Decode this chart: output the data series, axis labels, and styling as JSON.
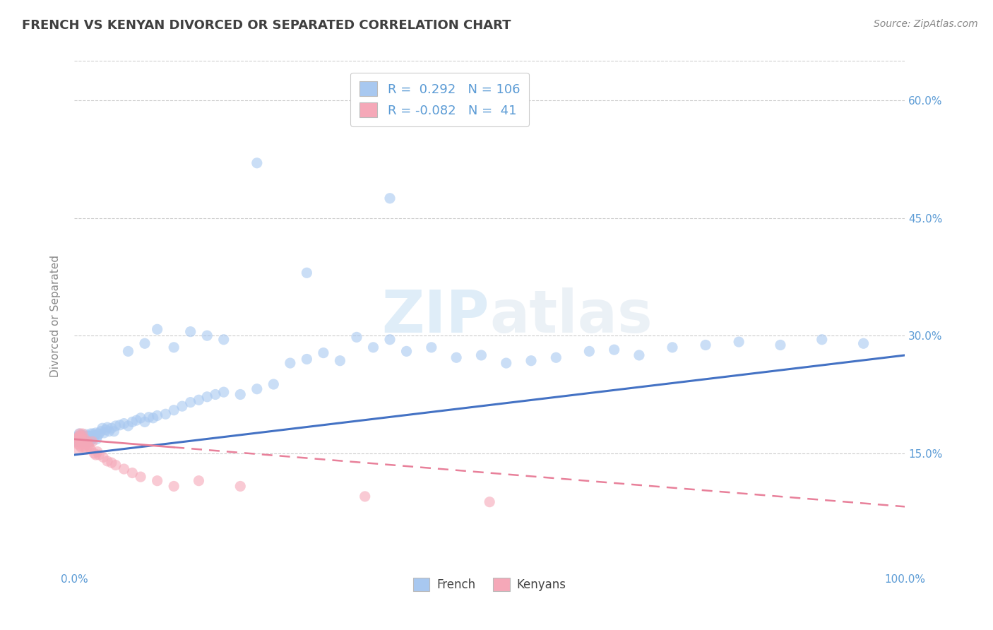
{
  "title": "FRENCH VS KENYAN DIVORCED OR SEPARATED CORRELATION CHART",
  "source": "Source: ZipAtlas.com",
  "ylabel": "Divorced or Separated",
  "watermark": "ZIPatlas",
  "legend_french": {
    "R": 0.292,
    "N": 106
  },
  "legend_kenyan": {
    "R": -0.082,
    "N": 41
  },
  "french_color": "#a8c8f0",
  "kenyan_color": "#f5a8b8",
  "french_line_color": "#4472c4",
  "kenyan_line_color": "#e8809a",
  "background": "#ffffff",
  "xlim": [
    0,
    1
  ],
  "ylim": [
    0.0,
    0.65
  ],
  "x_ticks": [
    0.0,
    0.2,
    0.4,
    0.6,
    0.8,
    1.0
  ],
  "y_ticks": [
    0.15,
    0.3,
    0.45,
    0.6
  ],
  "y_tick_labels": [
    "15.0%",
    "30.0%",
    "45.0%",
    "60.0%"
  ],
  "french_x": [
    0.002,
    0.003,
    0.004,
    0.005,
    0.005,
    0.006,
    0.006,
    0.007,
    0.007,
    0.008,
    0.008,
    0.009,
    0.009,
    0.01,
    0.01,
    0.011,
    0.011,
    0.012,
    0.012,
    0.013,
    0.013,
    0.014,
    0.014,
    0.015,
    0.015,
    0.016,
    0.016,
    0.017,
    0.017,
    0.018,
    0.018,
    0.019,
    0.02,
    0.02,
    0.021,
    0.022,
    0.023,
    0.024,
    0.025,
    0.026,
    0.027,
    0.028,
    0.03,
    0.032,
    0.034,
    0.036,
    0.038,
    0.04,
    0.042,
    0.045,
    0.048,
    0.05,
    0.055,
    0.06,
    0.065,
    0.07,
    0.075,
    0.08,
    0.085,
    0.09,
    0.095,
    0.1,
    0.11,
    0.12,
    0.13,
    0.14,
    0.15,
    0.16,
    0.17,
    0.18,
    0.2,
    0.22,
    0.24,
    0.26,
    0.28,
    0.3,
    0.32,
    0.34,
    0.36,
    0.38,
    0.4,
    0.43,
    0.46,
    0.49,
    0.52,
    0.55,
    0.58,
    0.62,
    0.65,
    0.68,
    0.72,
    0.76,
    0.8,
    0.85,
    0.9,
    0.95,
    0.28,
    0.38,
    0.22,
    0.18,
    0.16,
    0.14,
    0.12,
    0.1,
    0.085,
    0.065
  ],
  "french_y": [
    0.165,
    0.17,
    0.168,
    0.165,
    0.172,
    0.166,
    0.175,
    0.169,
    0.172,
    0.168,
    0.173,
    0.165,
    0.17,
    0.167,
    0.173,
    0.169,
    0.166,
    0.172,
    0.168,
    0.171,
    0.165,
    0.17,
    0.174,
    0.168,
    0.165,
    0.172,
    0.166,
    0.169,
    0.165,
    0.168,
    0.172,
    0.165,
    0.17,
    0.175,
    0.168,
    0.172,
    0.175,
    0.17,
    0.173,
    0.176,
    0.168,
    0.172,
    0.175,
    0.178,
    0.182,
    0.176,
    0.18,
    0.183,
    0.178,
    0.182,
    0.178,
    0.185,
    0.186,
    0.188,
    0.185,
    0.19,
    0.192,
    0.195,
    0.19,
    0.196,
    0.195,
    0.198,
    0.2,
    0.205,
    0.21,
    0.215,
    0.218,
    0.222,
    0.225,
    0.228,
    0.225,
    0.232,
    0.238,
    0.265,
    0.27,
    0.278,
    0.268,
    0.298,
    0.285,
    0.295,
    0.28,
    0.285,
    0.272,
    0.275,
    0.265,
    0.268,
    0.272,
    0.28,
    0.282,
    0.275,
    0.285,
    0.288,
    0.292,
    0.288,
    0.295,
    0.29,
    0.38,
    0.475,
    0.52,
    0.295,
    0.3,
    0.305,
    0.285,
    0.308,
    0.29,
    0.28
  ],
  "kenyan_x": [
    0.002,
    0.003,
    0.004,
    0.005,
    0.005,
    0.006,
    0.007,
    0.007,
    0.008,
    0.008,
    0.009,
    0.009,
    0.01,
    0.01,
    0.011,
    0.012,
    0.013,
    0.014,
    0.015,
    0.016,
    0.017,
    0.018,
    0.02,
    0.022,
    0.024,
    0.026,
    0.028,
    0.03,
    0.035,
    0.04,
    0.045,
    0.05,
    0.06,
    0.07,
    0.08,
    0.1,
    0.12,
    0.15,
    0.2,
    0.35,
    0.5
  ],
  "kenyan_y": [
    0.165,
    0.168,
    0.162,
    0.17,
    0.155,
    0.172,
    0.16,
    0.175,
    0.165,
    0.158,
    0.168,
    0.172,
    0.162,
    0.175,
    0.165,
    0.158,
    0.168,
    0.162,
    0.155,
    0.165,
    0.16,
    0.158,
    0.155,
    0.165,
    0.15,
    0.148,
    0.152,
    0.148,
    0.145,
    0.14,
    0.138,
    0.135,
    0.13,
    0.125,
    0.12,
    0.115,
    0.108,
    0.115,
    0.108,
    0.095,
    0.088
  ],
  "french_trend_x": [
    0.0,
    1.0
  ],
  "french_trend_y": [
    0.148,
    0.275
  ],
  "kenyan_trend_x": [
    0.0,
    1.0
  ],
  "kenyan_trend_y": [
    0.168,
    0.082
  ],
  "grid_color": "#cccccc",
  "title_color": "#404040",
  "axis_color": "#5b9bd5",
  "legend_text_color": "#5b9bd5"
}
